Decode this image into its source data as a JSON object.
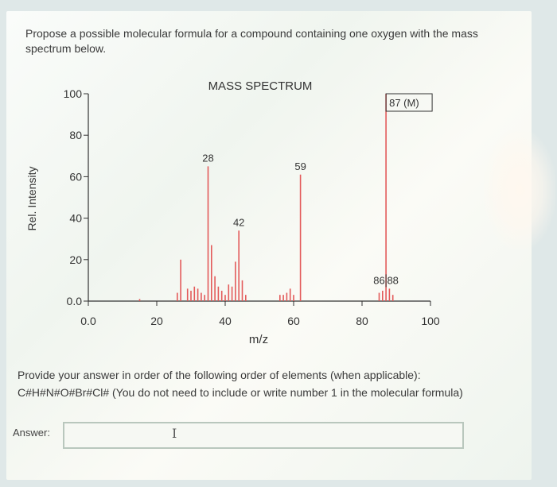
{
  "question": {
    "text": "Propose a possible molecular formula for a compound containing one oxygen with the mass spectrum below."
  },
  "instructions": {
    "line1": "Provide your answer in order of the following order of elements (when applicable):",
    "line2": "C#H#N#O#Br#Cl# (You do not need to include or write number 1 in the molecular formula)"
  },
  "answer": {
    "label": "Answer:",
    "value": "",
    "cursor_icon": "text-cursor-icon"
  },
  "colors": {
    "peak": "#e35a5a",
    "axis": "#333333",
    "text": "#3a3a3a"
  },
  "chart_data": {
    "type": "bar",
    "title": "MASS SPECTRUM",
    "xlabel": "m/z",
    "ylabel": "Rel. Intensity",
    "xlim": [
      0,
      100
    ],
    "ylim": [
      0,
      100
    ],
    "x_ticks": [
      {
        "value": 0,
        "label": "0.0"
      },
      {
        "value": 20,
        "label": "20"
      },
      {
        "value": 40,
        "label": "40"
      },
      {
        "value": 60,
        "label": "60"
      },
      {
        "value": 80,
        "label": "80"
      },
      {
        "value": 100,
        "label": "100"
      }
    ],
    "y_ticks": [
      {
        "value": 0,
        "label": "0.0"
      },
      {
        "value": 20,
        "label": "20"
      },
      {
        "value": 40,
        "label": "40"
      },
      {
        "value": 60,
        "label": "60"
      },
      {
        "value": 80,
        "label": "80"
      },
      {
        "value": 100,
        "label": "100"
      }
    ],
    "peaks": [
      {
        "mz": 15,
        "intensity": 1
      },
      {
        "mz": 26,
        "intensity": 4
      },
      {
        "mz": 27,
        "intensity": 20
      },
      {
        "mz": 29,
        "intensity": 6
      },
      {
        "mz": 30,
        "intensity": 5
      },
      {
        "mz": 31,
        "intensity": 7
      },
      {
        "mz": 32,
        "intensity": 6
      },
      {
        "mz": 33,
        "intensity": 4
      },
      {
        "mz": 34,
        "intensity": 3
      },
      {
        "mz": 35,
        "intensity": 65
      },
      {
        "mz": 36,
        "intensity": 27
      },
      {
        "mz": 37,
        "intensity": 12
      },
      {
        "mz": 38,
        "intensity": 7
      },
      {
        "mz": 39,
        "intensity": 5
      },
      {
        "mz": 40,
        "intensity": 3
      },
      {
        "mz": 41,
        "intensity": 8
      },
      {
        "mz": 42,
        "intensity": 7
      },
      {
        "mz": 43,
        "intensity": 19
      },
      {
        "mz": 44,
        "intensity": 34
      },
      {
        "mz": 45,
        "intensity": 10
      },
      {
        "mz": 46,
        "intensity": 3
      },
      {
        "mz": 56,
        "intensity": 3
      },
      {
        "mz": 57,
        "intensity": 3
      },
      {
        "mz": 58,
        "intensity": 4
      },
      {
        "mz": 59,
        "intensity": 6
      },
      {
        "mz": 60,
        "intensity": 3
      },
      {
        "mz": 62,
        "intensity": 61
      },
      {
        "mz": 85,
        "intensity": 4
      },
      {
        "mz": 86,
        "intensity": 5
      },
      {
        "mz": 87,
        "intensity": 100
      },
      {
        "mz": 88,
        "intensity": 6
      },
      {
        "mz": 89,
        "intensity": 3
      }
    ],
    "peak_labels": [
      {
        "text": "28",
        "mz": 35,
        "intensity": 65
      },
      {
        "text": "42",
        "mz": 44,
        "intensity": 34
      },
      {
        "text": "59",
        "mz": 62,
        "intensity": 61
      },
      {
        "text": "86",
        "mz": 85,
        "intensity": 6
      },
      {
        "text": "88",
        "mz": 89,
        "intensity": 6
      },
      {
        "text": "87 (M)",
        "mz": 87,
        "intensity": 100
      }
    ]
  }
}
